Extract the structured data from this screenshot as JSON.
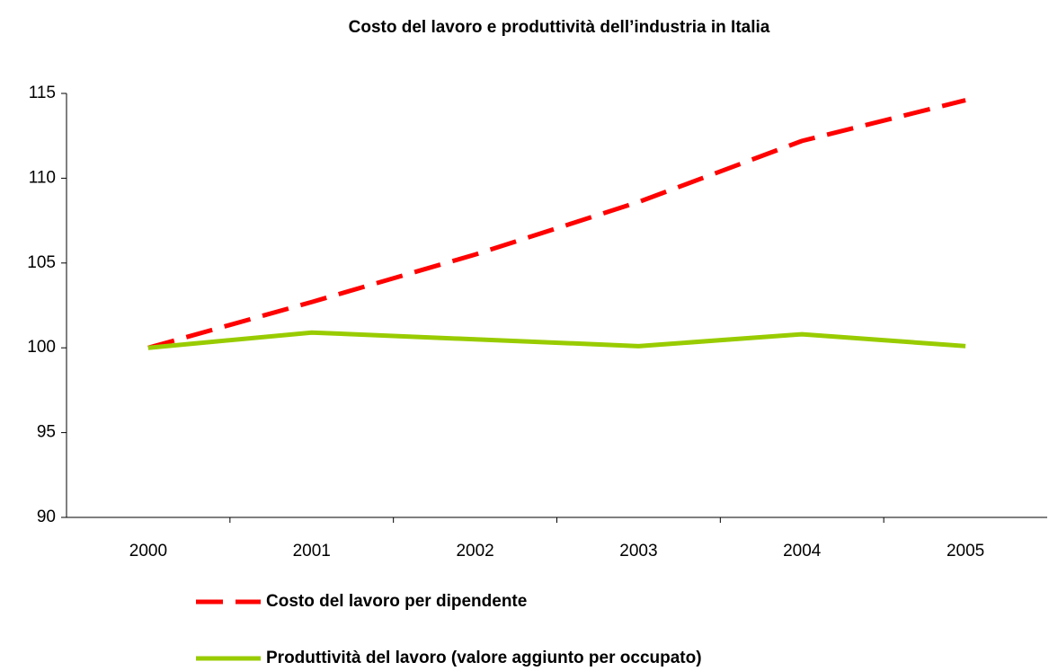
{
  "chart_data": {
    "type": "line",
    "title": "Costo del lavoro e produttività dell’industria in Italia",
    "categories": [
      "2000",
      "2001",
      "2002",
      "2003",
      "2004",
      "2005"
    ],
    "series": [
      {
        "name": "Costo del lavoro per dipendente",
        "color": "#ff0000",
        "dashed": true,
        "values": [
          100,
          102.7,
          105.5,
          108.6,
          112.2,
          114.6
        ]
      },
      {
        "name": "Produttività del lavoro (valore aggiunto per occupato)",
        "color": "#99cc00",
        "dashed": false,
        "values": [
          100,
          100.9,
          100.5,
          100.1,
          100.8,
          100.1
        ]
      }
    ],
    "ylim": [
      90,
      115
    ],
    "yticks": [
      90,
      95,
      100,
      105,
      110,
      115
    ],
    "grid": false,
    "legend": "bottom"
  }
}
